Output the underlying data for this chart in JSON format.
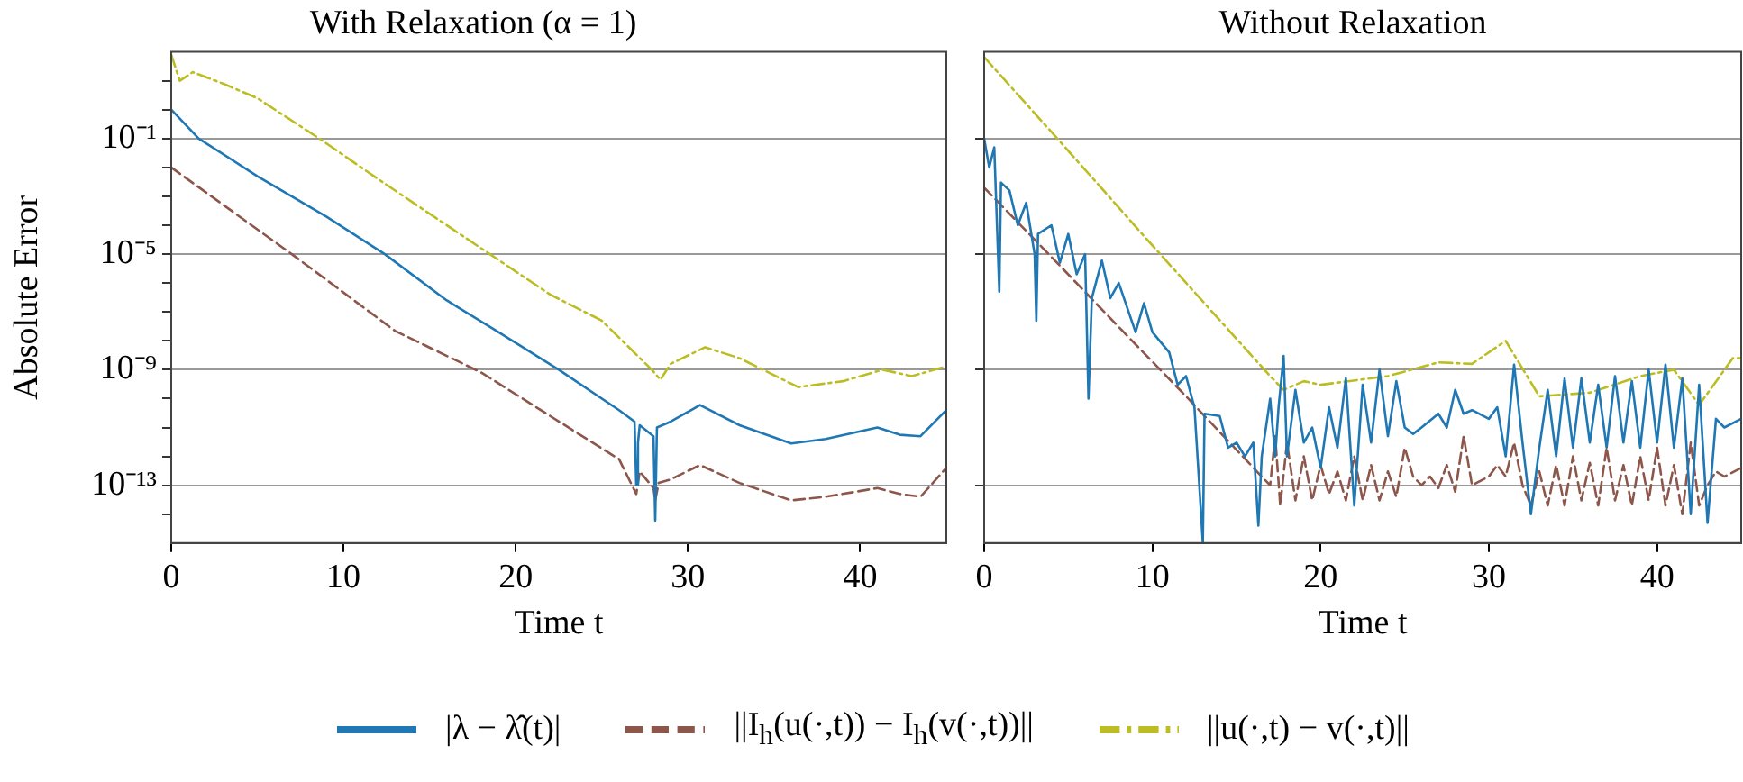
{
  "chart_data": [
    {
      "type": "line",
      "title": "With Relaxation (α = 1)",
      "xlabel": "Time t",
      "ylabel": "Absolute Error",
      "log": "y",
      "grid": "y",
      "legend": "bottom",
      "xlim": [
        0,
        45
      ],
      "xticks": [
        0,
        10,
        20,
        30,
        40
      ],
      "ylim": [
        1e-15,
        100
      ],
      "yticks": [
        {
          "value": 10,
          "label": null
        },
        {
          "value": 1,
          "label": null
        },
        {
          "value": 0.1,
          "label": "10⁻¹"
        },
        {
          "value": 0.01,
          "label": null
        },
        {
          "value": 0.001,
          "label": null
        },
        {
          "value": 0.0001,
          "label": null
        },
        {
          "value": 1e-05,
          "label": "10⁻⁵"
        },
        {
          "value": 1e-06,
          "label": null
        },
        {
          "value": 1e-07,
          "label": null
        },
        {
          "value": 1e-08,
          "label": null
        },
        {
          "value": 1e-09,
          "label": "10⁻⁹"
        },
        {
          "value": 1e-10,
          "label": null
        },
        {
          "value": 1e-11,
          "label": null
        },
        {
          "value": 1e-12,
          "label": null
        },
        {
          "value": 1e-13,
          "label": "10⁻¹³"
        },
        {
          "value": 1e-14,
          "label": null
        }
      ],
      "series": [
        {
          "name": "|λ − λ̂(t)|",
          "color": "#1f77b4",
          "line_style": "solid",
          "x": [
            0,
            1.6,
            5,
            9,
            12.4,
            16,
            19,
            22.5,
            26,
            26.9,
            27,
            27.1,
            27.2,
            28,
            28.1,
            28.2,
            29,
            30.7,
            33,
            36,
            38,
            41,
            42.3,
            43.5,
            45
          ],
          "values": [
            1,
            0.1,
            0.005,
            0.0002,
            1e-05,
            2.5e-07,
            2e-08,
            1e-09,
            4e-11,
            1.6e-11,
            1e-13,
            3e-12,
            1.2e-11,
            5e-12,
            6e-15,
            1e-11,
            1.6e-11,
            6e-11,
            1.2e-11,
            2.8e-12,
            4e-12,
            1e-11,
            5.6e-12,
            5e-12,
            4e-11
          ]
        },
        {
          "name": "||I$_{h}$(u(·,t)) − I$_{h}$(v(·,t))||",
          "color": "#8c564b",
          "line_style": "dashed",
          "x": [
            0,
            7,
            13,
            18,
            22,
            26,
            27,
            27.2,
            28,
            28.1,
            28.3,
            29,
            30.7,
            33,
            36,
            38,
            41,
            42.3,
            43.5,
            45
          ],
          "values": [
            0.01,
            1e-05,
            2.2e-08,
            8e-10,
            2.5e-11,
            8e-13,
            5e-14,
            3e-13,
            8e-14,
            3e-14,
            1.2e-13,
            1.6e-13,
            5e-13,
            1.2e-13,
            3e-14,
            4e-14,
            8e-14,
            5e-14,
            4e-14,
            4e-13
          ]
        },
        {
          "name": "||u(·,t) − v(·,t)||",
          "color": "#bcbd22",
          "line_style": "dashdot",
          "x": [
            0,
            0.5,
            1.25,
            3,
            5,
            8.6,
            12,
            15,
            18.5,
            22,
            25,
            27.9,
            28.4,
            29,
            31,
            33,
            36.4,
            39,
            41.3,
            43,
            45
          ],
          "values": [
            80,
            10,
            20,
            8,
            2.5,
            0.1,
            0.004,
            0.00025,
            1e-05,
            4e-07,
            5e-08,
            1e-09,
            4.5e-10,
            1.6e-09,
            6e-09,
            2.5e-09,
            2.5e-10,
            4e-10,
            1e-09,
            6e-10,
            1.3e-09
          ]
        }
      ]
    },
    {
      "type": "line",
      "title": "Without Relaxation",
      "xlabel": "Time t",
      "log": "y",
      "grid": "y",
      "tick_labels": "x",
      "xlim": [
        0,
        45
      ],
      "xticks": [
        0,
        10,
        20,
        30,
        40
      ],
      "ylim": [
        1e-15,
        100
      ],
      "yticks": [
        {
          "value": 0.1,
          "label": null
        },
        {
          "value": 1e-05,
          "label": null
        },
        {
          "value": 1e-09,
          "label": null
        },
        {
          "value": 1e-13,
          "label": null
        }
      ],
      "series": [
        {
          "color": "#1f77b4",
          "line_style": "solid",
          "x": [
            0,
            0.3,
            0.6,
            0.9,
            1.0,
            1.5,
            2,
            2.5,
            3,
            3.1,
            3.2,
            4,
            4.5,
            5,
            5.5,
            6,
            6.2,
            6.4,
            7,
            7.5,
            8,
            9,
            9.5,
            10,
            11,
            11.5,
            12,
            12.5,
            13,
            13.1,
            14,
            14.5,
            15,
            15.5,
            16,
            16.3,
            16.5,
            17,
            17.3,
            17.5,
            17.8,
            18,
            18.5,
            19,
            19.5,
            20,
            20.5,
            21,
            21.5,
            22,
            22.5,
            23,
            23.5,
            24,
            24.5,
            25,
            25.5,
            26,
            27,
            27.5,
            28,
            28.5,
            29,
            30,
            30.5,
            31,
            31.5,
            32,
            32.5,
            33,
            33.5,
            34,
            34.5,
            35,
            35.5,
            36,
            36.5,
            37,
            37.5,
            38,
            38.5,
            39,
            39.5,
            40,
            40.5,
            41,
            41.5,
            42,
            42.5,
            43,
            43.5,
            44,
            45
          ],
          "values": [
            0.1,
            0.01,
            0.05,
            5e-07,
            0.003,
            0.0016,
            0.0001,
            0.0006,
            1e-05,
            5e-08,
            5e-05,
            0.0001,
            5e-06,
            5e-05,
            2e-06,
            1e-05,
            1e-10,
            3e-07,
            6e-06,
            3e-07,
            1e-06,
            2e-08,
            2e-07,
            2e-08,
            4e-09,
            3e-10,
            6e-10,
            5e-11,
            1e-15,
            3e-11,
            2.5e-11,
            2e-12,
            3e-12,
            1e-12,
            3e-12,
            4e-15,
            1e-12,
            1e-10,
            1e-12,
            5e-11,
            3e-09,
            1e-12,
            2e-10,
            3e-12,
            1e-11,
            4e-13,
            5e-11,
            2e-12,
            5e-10,
            2e-14,
            3e-10,
            3e-12,
            1e-09,
            5e-12,
            4e-10,
            1e-11,
            6e-12,
            1e-11,
            3e-11,
            1e-11,
            2e-10,
            3e-11,
            4e-11,
            2e-11,
            5e-11,
            1e-12,
            1.5e-09,
            3e-12,
            1e-14,
            2e-12,
            2e-10,
            1e-12,
            5e-10,
            2e-12,
            5e-10,
            3e-12,
            3e-10,
            2e-12,
            6e-10,
            3e-12,
            4e-10,
            2e-12,
            1e-09,
            3e-12,
            1.5e-09,
            2e-12,
            5e-10,
            1e-14,
            3e-10,
            5e-15,
            2e-11,
            1e-11,
            2e-11
          ]
        },
        {
          "color": "#8c564b",
          "line_style": "dashed",
          "x": [
            0,
            4,
            8,
            12,
            16.5,
            17,
            17.3,
            17.6,
            18,
            18.5,
            19,
            19.5,
            20,
            20.5,
            21,
            21.5,
            22,
            22.5,
            23,
            23.5,
            24,
            24.5,
            25,
            25.5,
            26,
            26.5,
            27,
            27.5,
            28,
            28.5,
            29,
            30,
            30.5,
            31,
            31.5,
            32,
            32.5,
            33,
            33.5,
            34,
            34.5,
            35,
            35.5,
            36,
            36.5,
            37,
            37.5,
            38,
            38.5,
            39,
            39.5,
            40,
            40.5,
            41,
            41.5,
            42,
            42.5,
            43,
            43.5,
            44,
            45
          ],
          "values": [
            0.002,
            8e-06,
            3e-08,
            1.2e-10,
            2e-13,
            1e-13,
            5e-12,
            2e-14,
            3e-12,
            3e-14,
            1e-12,
            3e-14,
            5e-13,
            5e-14,
            3e-13,
            3e-14,
            1e-12,
            3e-14,
            5e-13,
            3e-14,
            3e-13,
            4e-14,
            2e-12,
            2e-13,
            1e-13,
            2e-13,
            8e-14,
            5e-13,
            6e-14,
            5e-12,
            1e-13,
            2e-13,
            5e-13,
            2e-13,
            3e-12,
            1e-13,
            2e-14,
            3e-13,
            2e-14,
            5e-13,
            2e-14,
            1e-12,
            3e-14,
            6e-13,
            2e-14,
            2e-12,
            3e-14,
            5e-13,
            2e-14,
            1e-12,
            3e-14,
            2e-12,
            2e-14,
            5e-13,
            1e-14,
            3e-12,
            2e-14,
            1e-13,
            3e-13,
            2e-13,
            4e-13
          ]
        },
        {
          "color": "#bcbd22",
          "line_style": "dashdot",
          "x": [
            0,
            4.5,
            10,
            17,
            17.8,
            19,
            20,
            24,
            27,
            29,
            31,
            33,
            36,
            39,
            41,
            42.5,
            44.5,
            45
          ],
          "values": [
            66,
            0.08,
            2e-05,
            6e-10,
            2e-10,
            4e-10,
            3e-10,
            6e-10,
            1.8e-09,
            1.6e-09,
            1e-08,
            1.2e-10,
            1.6e-10,
            6e-10,
            1e-09,
            6e-11,
            2.5e-09,
            2.5e-09
          ]
        }
      ]
    }
  ]
}
